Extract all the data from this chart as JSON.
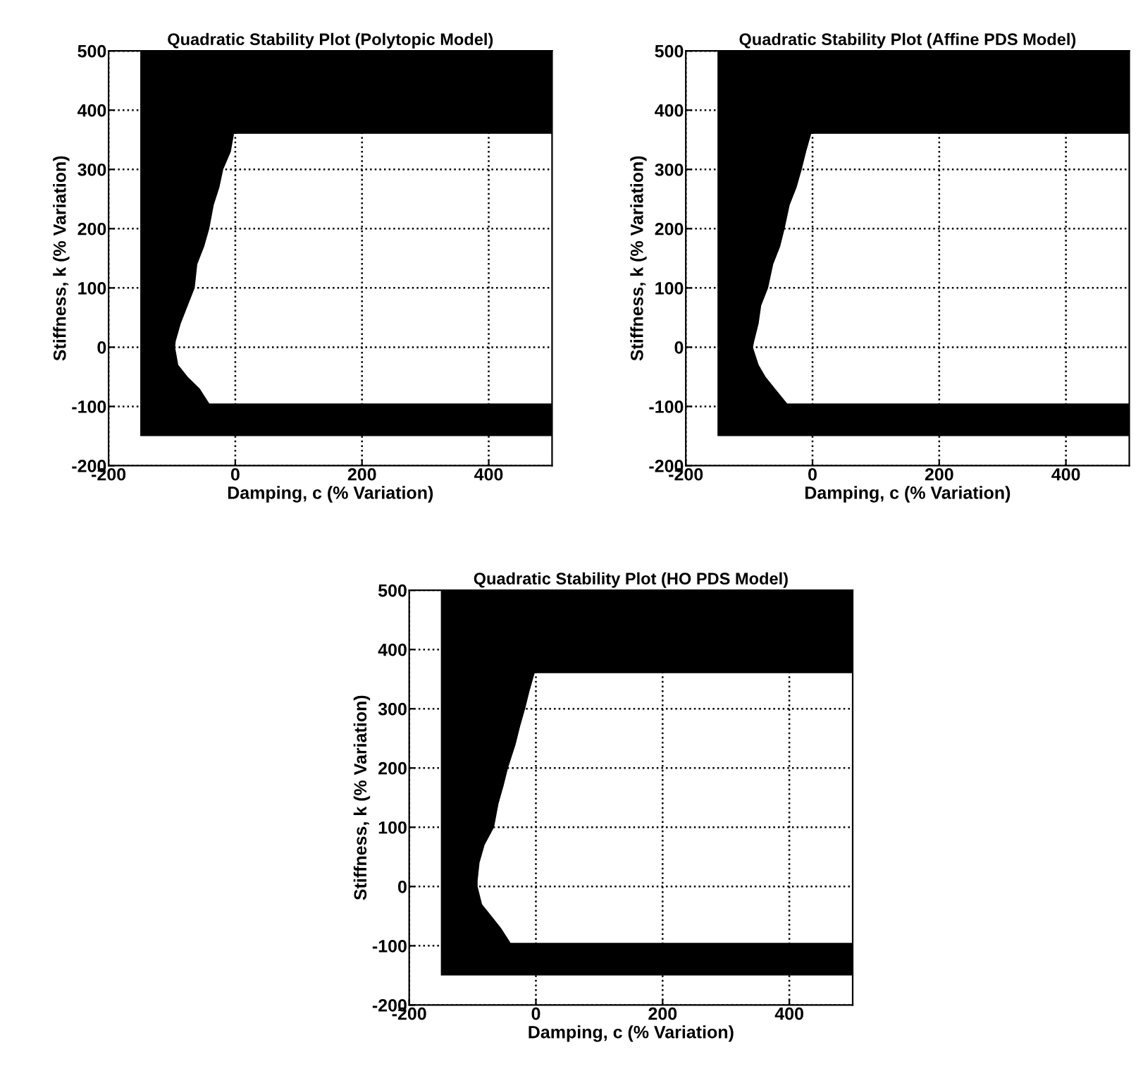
{
  "chart_data": [
    {
      "type": "area",
      "title": "Quadratic Stability Plot (Polytopic Model)",
      "xlabel": "Damping, c (% Variation)",
      "ylabel": "Stiffness, k (% Variation)",
      "xlim": [
        -200,
        500
      ],
      "ylim": [
        -200,
        500
      ],
      "xticks": [
        -200,
        0,
        200,
        400
      ],
      "yticks": [
        -200,
        -100,
        0,
        100,
        200,
        300,
        400,
        500
      ],
      "grid": true,
      "series": [
        {
          "color": "#000000",
          "x": [
            -150,
            500,
            500,
            -41,
            -56,
            -75,
            -90,
            -95,
            -94,
            -86,
            -75,
            -64,
            -60,
            -49,
            -41,
            -34,
            -25,
            -19,
            -7,
            -2,
            500,
            500,
            -150
          ],
          "values": [
            -150,
            -150,
            -95,
            -95,
            -70,
            -50,
            -30,
            0,
            10,
            40,
            70,
            100,
            140,
            170,
            200,
            240,
            270,
            300,
            330,
            360,
            360,
            500,
            500
          ]
        }
      ]
    },
    {
      "type": "area",
      "title": "Quadratic Stability Plot (Affine PDS Model)",
      "xlabel": "Damping, c (% Variation)",
      "ylabel": "Stiffness, k (% Variation)",
      "xlim": [
        -200,
        500
      ],
      "ylim": [
        -200,
        500
      ],
      "xticks": [
        -200,
        0,
        200,
        400
      ],
      "yticks": [
        -200,
        -100,
        0,
        100,
        200,
        300,
        400,
        500
      ],
      "grid": true,
      "series": [
        {
          "color": "#000000",
          "x": [
            -150,
            500,
            500,
            -40,
            -59,
            -74,
            -85,
            -94,
            -92,
            -85,
            -81,
            -70,
            -62,
            -51,
            -44,
            -36,
            -25,
            -17,
            -10,
            -2,
            500,
            500,
            -150
          ],
          "values": [
            -150,
            -150,
            -95,
            -95,
            -70,
            -50,
            -30,
            0,
            10,
            40,
            70,
            100,
            140,
            170,
            200,
            240,
            270,
            300,
            330,
            360,
            360,
            500,
            500
          ]
        }
      ]
    },
    {
      "type": "area",
      "title": "Quadratic Stability Plot (HO PDS Model)",
      "xlabel": "Damping, c (% Variation)",
      "ylabel": "Stiffness, k (% Variation)",
      "xlim": [
        -200,
        500
      ],
      "ylim": [
        -200,
        500
      ],
      "xticks": [
        -200,
        0,
        200,
        400
      ],
      "yticks": [
        -200,
        -100,
        0,
        100,
        200,
        300,
        400,
        500
      ],
      "grid": true,
      "series": [
        {
          "color": "#000000",
          "x": [
            -150,
            500,
            500,
            -40,
            -55,
            -70,
            -85,
            -92,
            -92,
            -89,
            -81,
            -66,
            -59,
            -51,
            -44,
            -32,
            -25,
            -17,
            -10,
            -2,
            500,
            500,
            -150
          ],
          "values": [
            -150,
            -150,
            -95,
            -95,
            -70,
            -50,
            -30,
            0,
            10,
            40,
            70,
            100,
            140,
            170,
            200,
            240,
            270,
            300,
            330,
            360,
            360,
            500,
            500
          ]
        }
      ]
    }
  ]
}
